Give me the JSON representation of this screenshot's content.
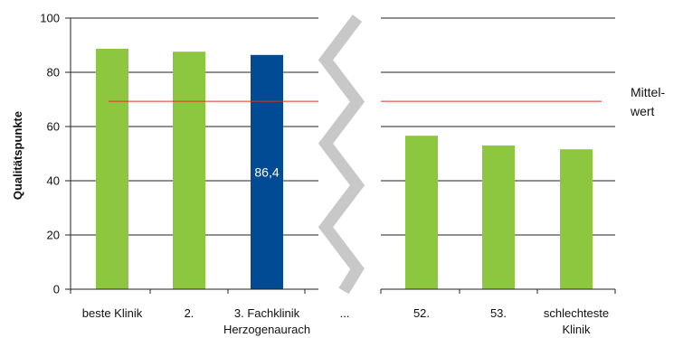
{
  "chart_data": {
    "type": "bar",
    "ylabel": "Qualitätspunkte",
    "ylim": [
      0,
      100
    ],
    "yticks": [
      0,
      20,
      40,
      60,
      80,
      100
    ],
    "grid": true,
    "average_value": 69.3,
    "average_label_lines": [
      "Mittel-",
      "wert"
    ],
    "break_label": "...",
    "bars": [
      {
        "label_lines": [
          "beste Klinik"
        ],
        "value": 88.7,
        "color": "#8dc63f",
        "data_label": ""
      },
      {
        "label_lines": [
          "2."
        ],
        "value": 87.6,
        "color": "#8dc63f",
        "data_label": ""
      },
      {
        "label_lines": [
          "3. Fachklinik",
          "Herzogenaurach"
        ],
        "value": 86.4,
        "color": "#004b93",
        "data_label": "86,4"
      },
      {
        "label_lines": [
          "52."
        ],
        "value": 56.6,
        "color": "#8dc63f",
        "data_label": ""
      },
      {
        "label_lines": [
          "53."
        ],
        "value": 53.0,
        "color": "#8dc63f",
        "data_label": ""
      },
      {
        "label_lines": [
          "schlechteste",
          "Klinik"
        ],
        "value": 51.6,
        "color": "#8dc63f",
        "data_label": ""
      }
    ],
    "colors": {
      "good": "#8dc63f",
      "highlight": "#004b93",
      "average_line": "#e0301e",
      "break_band": "#c8c8c8"
    }
  }
}
